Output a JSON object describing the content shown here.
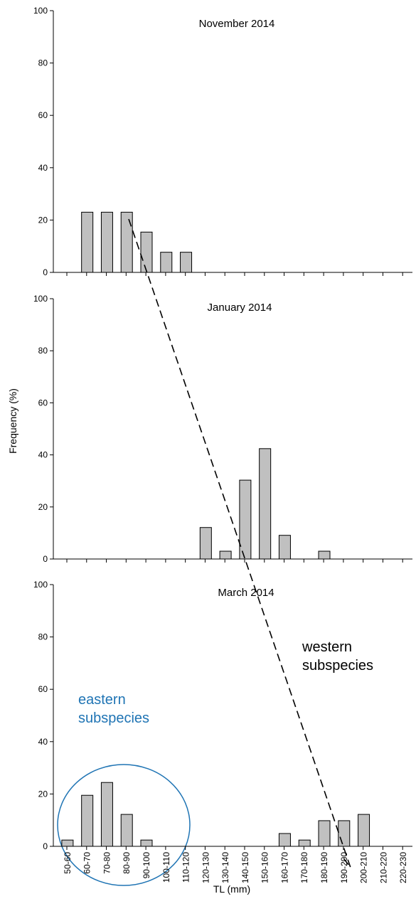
{
  "chart_data": [
    {
      "type": "bar",
      "title": "November 2014",
      "categories": [
        "50-60",
        "60-70",
        "70-80",
        "80-90",
        "90-100",
        "100-110",
        "110-120",
        "120-130",
        "130-140",
        "140-150",
        "150-160",
        "160-170",
        "170-180",
        "180-190",
        "190-200",
        "200-210",
        "210-220",
        "220-230"
      ],
      "values": [
        0,
        23,
        23,
        23,
        15.4,
        7.7,
        7.7,
        0,
        0,
        0,
        0,
        0,
        0,
        0,
        0,
        0,
        0,
        0
      ],
      "ylim": [
        0,
        100
      ],
      "yticks": [
        "0",
        "20",
        "40",
        "60",
        "80",
        "100"
      ]
    },
    {
      "type": "bar",
      "title": "January 2014",
      "categories": [
        "50-60",
        "60-70",
        "70-80",
        "80-90",
        "90-100",
        "100-110",
        "110-120",
        "120-130",
        "130-140",
        "140-150",
        "150-160",
        "160-170",
        "170-180",
        "180-190",
        "190-200",
        "200-210",
        "210-220",
        "220-230"
      ],
      "values": [
        0,
        0,
        0,
        0,
        0,
        0,
        0,
        12.1,
        3,
        30.3,
        42.4,
        9.1,
        0,
        3,
        0,
        0,
        0,
        0
      ],
      "ylim": [
        0,
        100
      ],
      "yticks": [
        "0",
        "20",
        "40",
        "60",
        "80",
        "100"
      ]
    },
    {
      "type": "bar",
      "title": "March 2014",
      "categories": [
        "50-60",
        "60-70",
        "70-80",
        "80-90",
        "90-100",
        "100-110",
        "110-120",
        "120-130",
        "130-140",
        "140-150",
        "150-160",
        "160-170",
        "170-180",
        "180-190",
        "190-200",
        "200-210",
        "210-220",
        "220-230"
      ],
      "values": [
        2.4,
        19.5,
        24.4,
        12.2,
        2.4,
        0,
        0,
        0,
        0,
        0,
        0,
        4.9,
        2.4,
        9.8,
        9.8,
        12.2,
        0,
        0
      ],
      "ylim": [
        0,
        100
      ],
      "yticks": [
        "0",
        "20",
        "40",
        "60",
        "80",
        "100"
      ]
    }
  ],
  "ylabel": "Frequency (%)",
  "xlabel": "TL (mm)",
  "annotations": {
    "western_line1": "western",
    "western_line2": "subspecies",
    "eastern_line1": "eastern",
    "eastern_line2": "subspecies"
  },
  "colors": {
    "bar_fill": "#c0c0c0",
    "bar_stroke": "#000000",
    "eastern": "#1f74b4",
    "dashed_line": "#000000"
  }
}
